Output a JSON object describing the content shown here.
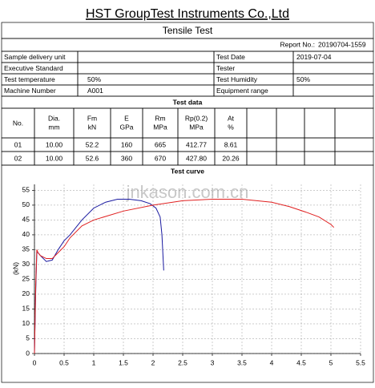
{
  "header": {
    "company": "HST GroupTest Instruments Co.,Ltd",
    "title": "Tensile Test",
    "report_no_label": "Report No.:",
    "report_no": "20190704-1559"
  },
  "info": [
    {
      "label": "Sample delivery unit"
    },
    {
      "label": "Test Date",
      "value": "2019-07-04"
    },
    {
      "label": "Executive Standard"
    },
    {
      "label": "Tester"
    },
    {
      "label": "Test temperature",
      "value": "50%"
    },
    {
      "label": "Test Humidity",
      "value": "50%"
    },
    {
      "label": "Machine Number",
      "value": "A001"
    },
    {
      "label": "Equipment range"
    }
  ],
  "test_data": {
    "title": "Test data",
    "columns": [
      [
        "No."
      ],
      [
        "Dia.",
        "mm"
      ],
      [
        "Fm",
        "kN"
      ],
      [
        "E",
        "GPa"
      ],
      [
        "Rm",
        "MPa"
      ],
      [
        "Rp(0.2)",
        "MPa"
      ],
      [
        "At",
        "%"
      ]
    ],
    "rows": [
      [
        "01",
        "10.00",
        "52.2",
        "160",
        "665",
        "412.77",
        "8.61"
      ],
      [
        "02",
        "10.00",
        "52.6",
        "360",
        "670",
        "427.80",
        "20.26"
      ]
    ]
  },
  "test_curve_title": "Test curve",
  "chart_data": {
    "type": "line",
    "ylabel": "(kN)",
    "watermark": "jnkason.com.cn",
    "xlim": [
      0,
      5.5
    ],
    "ylim": [
      0,
      57
    ],
    "xticks": [
      0,
      0.5,
      1,
      1.5,
      2,
      2.5,
      3,
      3.5,
      4,
      4.5,
      5,
      5.5
    ],
    "yticks": [
      0,
      5,
      10,
      15,
      20,
      25,
      30,
      35,
      40,
      45,
      50,
      55
    ],
    "grid": true,
    "series": [
      {
        "color": "#1a1aa0",
        "x": [
          0,
          0.02,
          0.04,
          0.06,
          0.1,
          0.2,
          0.3,
          0.4,
          0.5,
          0.6,
          0.8,
          1.0,
          1.2,
          1.4,
          1.6,
          1.8,
          1.95,
          2.05,
          2.12,
          2.15,
          2.17,
          2.18
        ],
        "values": [
          0,
          20,
          34,
          34,
          33,
          31,
          31.5,
          35,
          38,
          40,
          45,
          49,
          51,
          52,
          52,
          51.5,
          50.5,
          49,
          46,
          40,
          32,
          28
        ]
      },
      {
        "color": "#e02020",
        "x": [
          0,
          0.02,
          0.04,
          0.06,
          0.1,
          0.2,
          0.3,
          0.4,
          0.5,
          0.6,
          0.8,
          1.0,
          1.5,
          2.0,
          2.5,
          3.0,
          3.5,
          4.0,
          4.3,
          4.6,
          4.8,
          5.0,
          5.05
        ],
        "values": [
          0,
          22,
          35,
          34,
          33,
          32,
          32,
          34,
          36,
          39,
          43,
          45,
          48,
          50,
          51.5,
          52,
          52,
          51,
          49.5,
          47.5,
          46,
          43.5,
          42.5
        ]
      }
    ]
  }
}
